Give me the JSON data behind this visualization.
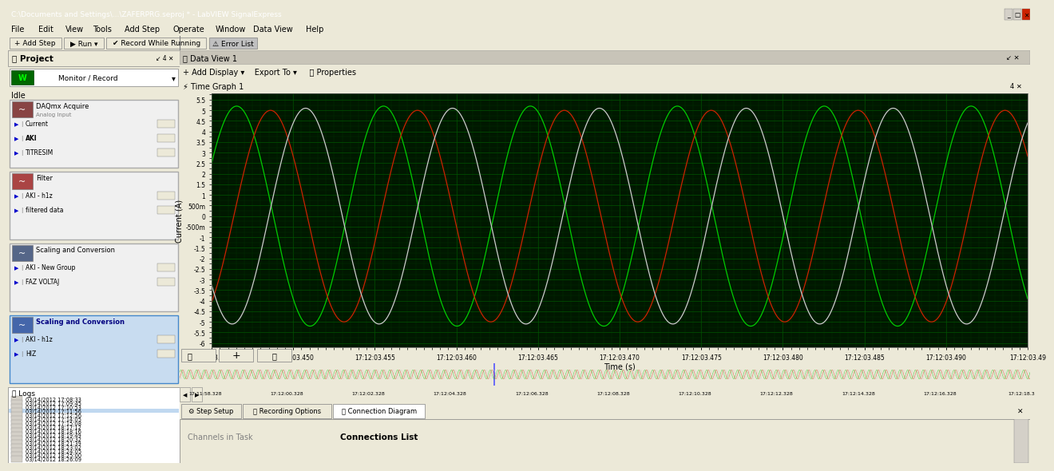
{
  "title_bar": "C:\\Documents and Settings\\...\\ZAFERPRG.seproj * - LabVIEW SignalExpress",
  "menu_items": [
    "File",
    "Edit",
    "View",
    "Tools",
    "Add Step",
    "Operate",
    "Window",
    "Data View",
    "Help"
  ],
  "graph_title": "Time Graph 1",
  "ylabel": "Current (A)",
  "xlabel": "Time (s)",
  "x_ticks": [
    "17:12:03.445",
    "17:12:03.450",
    "17:12:03.455",
    "17:12:03.460",
    "17:12:03.465",
    "17:12:03.470",
    "17:12:03.475",
    "17:12:03.480",
    "17:12:03.485",
    "17:12:03.490",
    "17:12:03.49"
  ],
  "ytick_vals": [
    5.5,
    5.0,
    4.5,
    4.0,
    3.5,
    3.0,
    2.5,
    2.0,
    1.5,
    1.0,
    0.5,
    0.0,
    -0.5,
    -1.0,
    -1.5,
    -2.0,
    -2.5,
    -3.0,
    -3.5,
    -4.0,
    -4.5,
    -5.0,
    -5.5,
    -6.0
  ],
  "ytick_labels": [
    "5.5",
    "5",
    "4.5",
    "4",
    "3.5",
    "3",
    "2.5",
    "2",
    "1.5",
    "1",
    "500m",
    "0",
    "-500m",
    "-1",
    "-1.5",
    "-2",
    "-2.5",
    "-3",
    "-3.5",
    "-4",
    "-4.5",
    "-5",
    "-5.5",
    "-6"
  ],
  "green_amplitude": 5.2,
  "red_amplitude": 5.0,
  "white_amplitude": 5.1,
  "signal_period": 0.009,
  "green_phase": 0.5,
  "red_phase": -0.95,
  "white_phase": -2.45,
  "green_color": "#00cc00",
  "red_color": "#cc2200",
  "white_color": "#cccccc",
  "plot_bg": "#001800",
  "grid_major_color": "#005500",
  "grid_minor_color": "#003300",
  "window_bg": "#ece9d8",
  "left_panel_bg": "#d4d0c8",
  "title_bg": "#0a246a",
  "timeline_bg": "#111111",
  "ylim": [
    -6.2,
    5.8
  ],
  "xlim_start": 61323.445,
  "xlim_end": 61323.495,
  "logs": [
    "03/14/2012 17:08:33",
    "03/14/2012 17:09:45",
    "03/14/2012 17:10:53",
    "03/14/2012 17:11:56",
    "03/14/2012 17:12:56",
    "03/14/2012 17:14:05",
    "03/14/2012 17:15:08",
    "03/14/2012 18:17:12",
    "03/14/2012 18:18:16",
    "03/14/2012 18:19:49",
    "03/14/2012 18:20:32",
    "03/14/2012 18:21:39",
    "03/14/2012 18:23:02",
    "03/14/2012 18:24:05",
    "03/14/2012 18:25:00",
    "03/14/2012 18:26:09"
  ],
  "highlighted_log_idx": 3,
  "bottom_time_ticks": [
    "17:11:58.328",
    "17:12:00.328",
    "17:12:02.328",
    "17:12:04.328",
    "17:12:06.328",
    "17:12:08.328",
    "17:12:10.328",
    "17:12:12.328",
    "17:12:14.328",
    "17:12:16.328",
    "17:12:18.3"
  ],
  "sections": [
    {
      "header": "DAQmx Acquire",
      "subheader": "Analog Input",
      "items": [
        "Current",
        "AKI",
        "TITRESIM"
      ],
      "highlighted": false,
      "icon_color": "#884444"
    },
    {
      "header": "Filter",
      "subheader": "",
      "items": [
        "AKI - h1z",
        "filtered data"
      ],
      "highlighted": false,
      "icon_color": "#aa4444"
    },
    {
      "header": "Scaling and Conversion",
      "subheader": "",
      "items": [
        "AKI - New Group",
        "FAZ VOLTAJ"
      ],
      "highlighted": false,
      "icon_color": "#556688"
    },
    {
      "header": "Scaling and Conversion",
      "subheader": "",
      "items": [
        "AKI - h1z",
        "HIZ"
      ],
      "highlighted": true,
      "icon_color": "#4466aa"
    }
  ],
  "bottom_tabs": [
    "Step Setup",
    "Recording Options",
    "Connection Diagram"
  ],
  "bottom_labels": [
    "Channels in Task",
    "Connections List"
  ]
}
